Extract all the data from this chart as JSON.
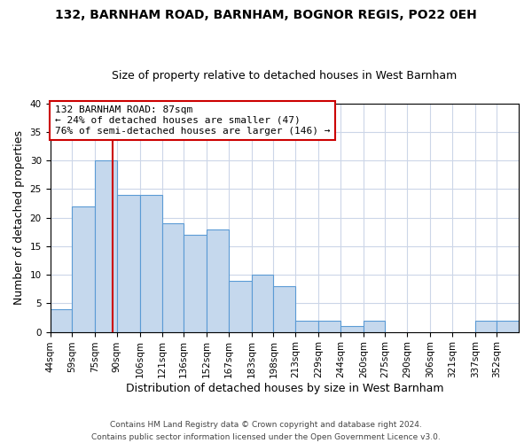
{
  "title1": "132, BARNHAM ROAD, BARNHAM, BOGNOR REGIS, PO22 0EH",
  "title2": "Size of property relative to detached houses in West Barnham",
  "xlabel": "Distribution of detached houses by size in West Barnham",
  "ylabel": "Number of detached properties",
  "bin_labels": [
    "44sqm",
    "59sqm",
    "75sqm",
    "90sqm",
    "106sqm",
    "121sqm",
    "136sqm",
    "152sqm",
    "167sqm",
    "183sqm",
    "198sqm",
    "213sqm",
    "229sqm",
    "244sqm",
    "260sqm",
    "275sqm",
    "290sqm",
    "306sqm",
    "321sqm",
    "337sqm",
    "352sqm"
  ],
  "bin_edges": [
    44,
    59,
    75,
    90,
    106,
    121,
    136,
    152,
    167,
    183,
    198,
    213,
    229,
    244,
    260,
    275,
    290,
    306,
    321,
    337,
    352,
    367
  ],
  "counts": [
    4,
    22,
    30,
    24,
    24,
    19,
    17,
    18,
    9,
    10,
    8,
    2,
    2,
    1,
    2,
    0,
    0,
    0,
    0,
    2,
    2
  ],
  "bar_color": "#c5d8ed",
  "bar_edge_color": "#5b9bd5",
  "reference_line_x": 87,
  "reference_line_color": "#cc0000",
  "annotation_text": "132 BARNHAM ROAD: 87sqm\n← 24% of detached houses are smaller (47)\n76% of semi-detached houses are larger (146) →",
  "annotation_box_color": "#ffffff",
  "annotation_box_edge_color": "#cc0000",
  "ylim": [
    0,
    40
  ],
  "yticks": [
    0,
    5,
    10,
    15,
    20,
    25,
    30,
    35,
    40
  ],
  "footer1": "Contains HM Land Registry data © Crown copyright and database right 2024.",
  "footer2": "Contains public sector information licensed under the Open Government Licence v3.0.",
  "background_color": "#ffffff",
  "grid_color": "#ccd6e8",
  "title1_fontsize": 10,
  "title2_fontsize": 9,
  "xlabel_fontsize": 9,
  "ylabel_fontsize": 9,
  "tick_fontsize": 7.5,
  "annotation_fontsize": 8,
  "footer_fontsize": 6.5
}
